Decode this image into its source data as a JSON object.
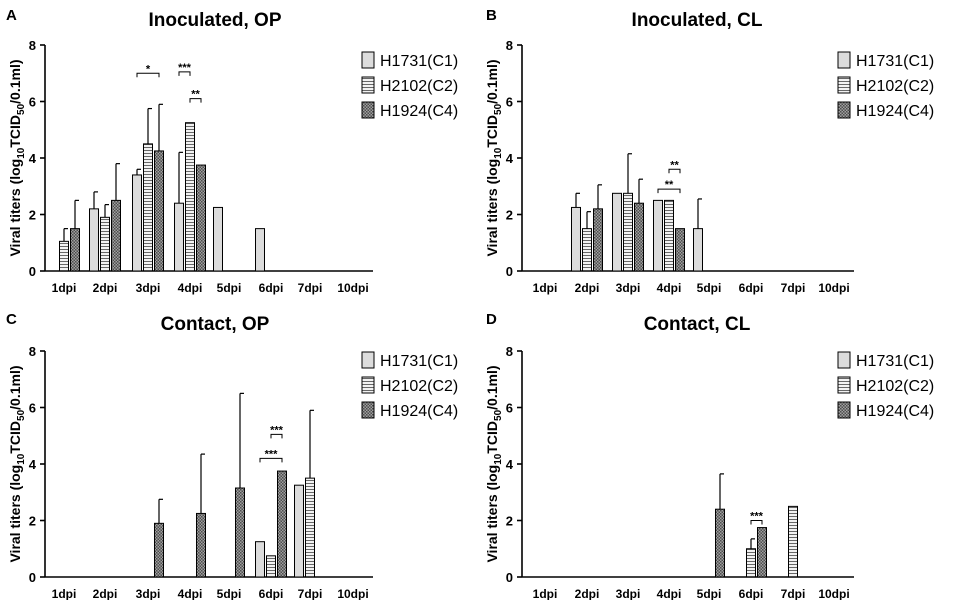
{
  "chart_data": [
    {
      "panel": "A",
      "title": "Inoculated, OP",
      "type": "bar",
      "categories": [
        "1dpi",
        "2dpi",
        "3dpi",
        "4dpi",
        "5dpi",
        "6dpi",
        "7dpi",
        "10dpi"
      ],
      "ylabel_main": "Viral titers (log",
      "ylabel_sub1": "10",
      "ylabel_mid": "TCID",
      "ylabel_sub2": "50",
      "ylabel_end": "/0.1ml)",
      "ylim": [
        0,
        8
      ],
      "yticks": [
        "0",
        "2",
        "4",
        "6",
        "8"
      ],
      "series": [
        {
          "name": "H1731(C1)",
          "values": [
            null,
            2.2,
            3.4,
            2.4,
            2.25,
            1.5,
            null,
            null
          ],
          "errors": [
            null,
            0.6,
            0.2,
            1.8,
            null,
            null,
            null,
            null
          ]
        },
        {
          "name": "H2102(C2)",
          "values": [
            1.05,
            1.9,
            4.5,
            5.25,
            null,
            null,
            null,
            null
          ],
          "errors": [
            0.45,
            0.45,
            1.25,
            null,
            null,
            null,
            null,
            null
          ]
        },
        {
          "name": "H1924(C4)",
          "values": [
            1.5,
            2.5,
            4.25,
            3.75,
            null,
            null,
            null,
            null
          ],
          "errors": [
            1.0,
            1.3,
            1.65,
            null,
            null,
            null,
            null,
            null
          ]
        }
      ],
      "significance": [
        {
          "label": "*",
          "cat": 2,
          "from": 0,
          "to": 2,
          "level": 7.0
        },
        {
          "label": "***",
          "cat": 3,
          "from": 0,
          "to": 1,
          "level": 7.05
        },
        {
          "label": "**",
          "cat": 3,
          "from": 1,
          "to": 2,
          "level": 6.1
        }
      ]
    },
    {
      "panel": "B",
      "title": "Inoculated, CL",
      "type": "bar",
      "categories": [
        "1dpi",
        "2dpi",
        "3dpi",
        "4dpi",
        "5dpi",
        "6dpi",
        "7dpi",
        "10dpi"
      ],
      "ylabel_main": "Viral titers (log",
      "ylabel_sub1": "10",
      "ylabel_mid": "TCID",
      "ylabel_sub2": "50",
      "ylabel_end": "/0.1ml)",
      "ylim": [
        0,
        8
      ],
      "yticks": [
        "0",
        "2",
        "4",
        "6",
        "8"
      ],
      "series": [
        {
          "name": "H1731(C1)",
          "values": [
            null,
            2.25,
            2.75,
            2.5,
            1.5,
            null,
            null,
            null
          ],
          "errors": [
            null,
            0.5,
            null,
            null,
            1.05,
            null,
            null,
            null
          ]
        },
        {
          "name": "H2102(C2)",
          "values": [
            null,
            1.5,
            2.75,
            2.5,
            null,
            null,
            null,
            null
          ],
          "errors": [
            null,
            0.6,
            1.4,
            null,
            null,
            null,
            null,
            null
          ]
        },
        {
          "name": "H1924(C4)",
          "values": [
            null,
            2.2,
            2.4,
            1.5,
            null,
            null,
            null,
            null
          ],
          "errors": [
            null,
            0.85,
            0.85,
            null,
            null,
            null,
            null,
            null
          ]
        }
      ],
      "significance": [
        {
          "label": "**",
          "cat": 3,
          "from": 0,
          "to": 2,
          "level": 2.9
        },
        {
          "label": "**",
          "cat": 3,
          "from": 1,
          "to": 2,
          "level": 3.6
        }
      ]
    },
    {
      "panel": "C",
      "title": "Contact, OP",
      "type": "bar",
      "categories": [
        "1dpi",
        "2dpi",
        "3dpi",
        "4dpi",
        "5dpi",
        "6dpi",
        "7dpi",
        "10dpi"
      ],
      "ylabel_main": "Viral titers (log",
      "ylabel_sub1": "10",
      "ylabel_mid": "TCID",
      "ylabel_sub2": "50",
      "ylabel_end": "/0.1ml)",
      "ylim": [
        0,
        8
      ],
      "yticks": [
        "0",
        "2",
        "4",
        "6",
        "8"
      ],
      "series": [
        {
          "name": "H1731(C1)",
          "values": [
            null,
            null,
            null,
            null,
            null,
            1.25,
            3.25,
            null
          ],
          "errors": [
            null,
            null,
            null,
            null,
            null,
            null,
            null,
            null
          ]
        },
        {
          "name": "H2102(C2)",
          "values": [
            null,
            null,
            null,
            null,
            null,
            0.75,
            3.5,
            null
          ],
          "errors": [
            null,
            null,
            null,
            null,
            null,
            null,
            2.4,
            null
          ]
        },
        {
          "name": "H1924(C4)",
          "values": [
            null,
            null,
            1.9,
            2.25,
            3.15,
            3.75,
            null,
            null
          ],
          "errors": [
            null,
            null,
            0.85,
            2.1,
            3.35,
            null,
            null,
            null
          ]
        }
      ],
      "significance": [
        {
          "label": "***",
          "cat": 5,
          "from": 0,
          "to": 2,
          "level": 4.2
        },
        {
          "label": "***",
          "cat": 5,
          "from": 1,
          "to": 2,
          "level": 5.05
        }
      ]
    },
    {
      "panel": "D",
      "title": "Contact, CL",
      "type": "bar",
      "categories": [
        "1dpi",
        "2dpi",
        "3dpi",
        "4dpi",
        "5dpi",
        "6dpi",
        "7dpi",
        "10dpi"
      ],
      "ylabel_main": "Viral titers (log",
      "ylabel_sub1": "10",
      "ylabel_mid": "TCID",
      "ylabel_sub2": "50",
      "ylabel_end": "/0.1ml)",
      "ylim": [
        0,
        8
      ],
      "yticks": [
        "0",
        "2",
        "4",
        "6",
        "8"
      ],
      "series": [
        {
          "name": "H1731(C1)",
          "values": [
            null,
            null,
            null,
            null,
            null,
            null,
            null,
            null
          ],
          "errors": [
            null,
            null,
            null,
            null,
            null,
            null,
            null,
            null
          ]
        },
        {
          "name": "H2102(C2)",
          "values": [
            null,
            null,
            null,
            null,
            null,
            1.0,
            2.5,
            null
          ],
          "errors": [
            null,
            null,
            null,
            null,
            null,
            0.35,
            null,
            null
          ]
        },
        {
          "name": "H1924(C4)",
          "values": [
            null,
            null,
            null,
            null,
            2.4,
            1.75,
            null,
            null
          ],
          "errors": [
            null,
            null,
            null,
            null,
            1.25,
            null,
            null,
            null
          ]
        }
      ],
      "significance": [
        {
          "label": "***",
          "cat": 5,
          "from": 1,
          "to": 2,
          "level": 2.0
        }
      ]
    }
  ]
}
